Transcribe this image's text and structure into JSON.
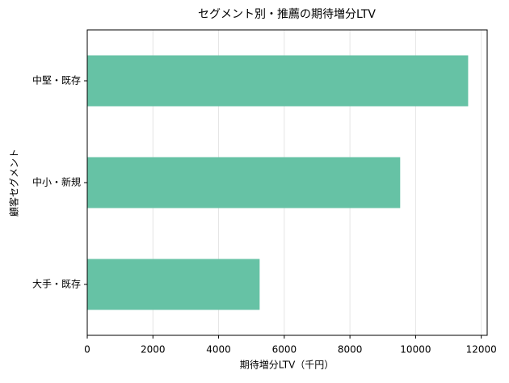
{
  "chart_data": {
    "type": "barh",
    "title": "セグメント別・推薦の期待増分LTV",
    "xlabel": "期待増分LTV（千円）",
    "ylabel": "顧客セグメント",
    "categories": [
      "大手・既存",
      "中小・新規",
      "中堅・既存"
    ],
    "values": [
      5250,
      9530,
      11600
    ],
    "color": "#66c2a5",
    "xlim": [
      0,
      12180
    ],
    "xticks": [
      0,
      2000,
      4000,
      6000,
      8000,
      10000,
      12000
    ],
    "grid": true
  }
}
